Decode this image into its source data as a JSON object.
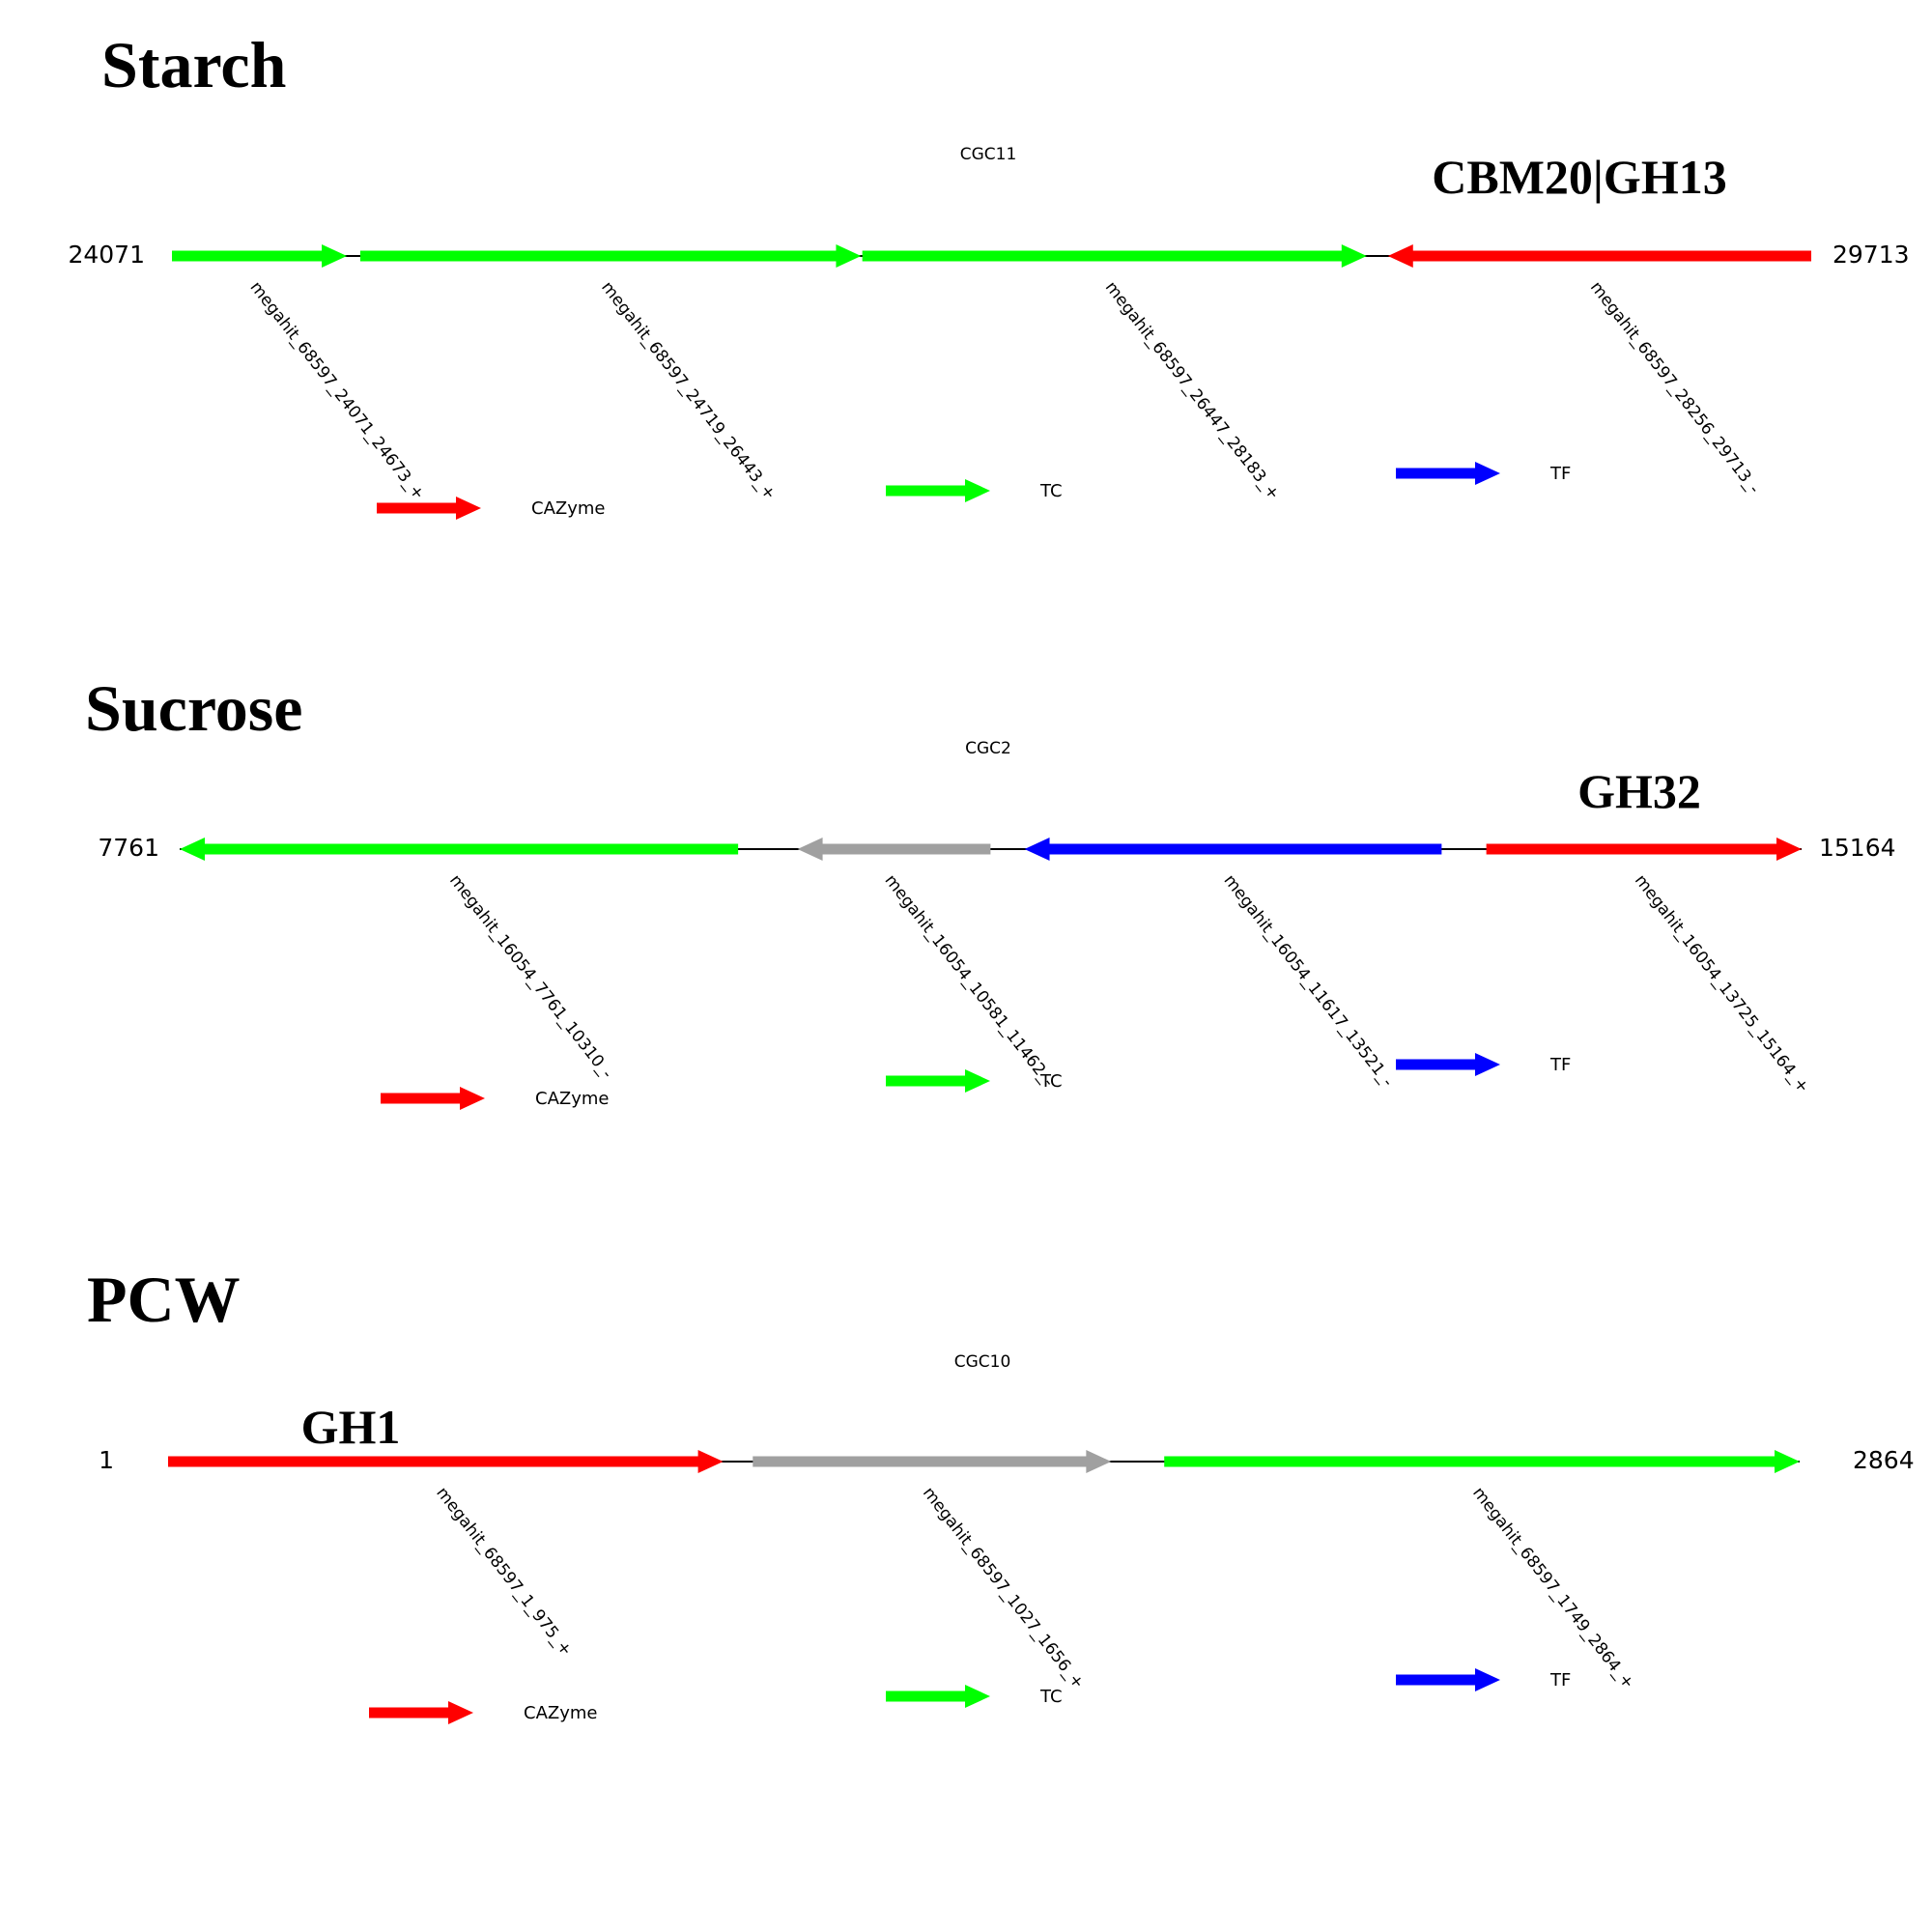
{
  "panels": [
    {
      "title": "Starch",
      "cluster": "CGC11",
      "start": "24071",
      "end": "29713",
      "range": [
        24071,
        29713
      ],
      "annotation": "CBM20|GH13",
      "genes": [
        {
          "label": "megahit_68597_24071_24673_+",
          "start": 24071,
          "end": 24673,
          "strand": "+",
          "type": "TC",
          "color": "#00ff00"
        },
        {
          "label": "megahit_68597_24719_26443_+",
          "start": 24719,
          "end": 26443,
          "strand": "+",
          "type": "TC",
          "color": "#00ff00"
        },
        {
          "label": "megahit_68597_26447_28183_+",
          "start": 26447,
          "end": 28183,
          "strand": "+",
          "type": "TC",
          "color": "#00ff00"
        },
        {
          "label": "megahit_68597_28256_29713_-",
          "start": 28256,
          "end": 29713,
          "strand": "-",
          "type": "CAZyme",
          "color": "#ff0000"
        }
      ]
    },
    {
      "title": "Sucrose",
      "cluster": "CGC2",
      "start": "7761",
      "end": "15164",
      "range": [
        7761,
        15164
      ],
      "annotation": "GH32",
      "genes": [
        {
          "label": "megahit_16054_7761_10310_-",
          "start": 7761,
          "end": 10310,
          "strand": "-",
          "type": "TC",
          "color": "#00ff00"
        },
        {
          "label": "megahit_16054_10581_11462_-",
          "start": 10581,
          "end": 11462,
          "strand": "-",
          "type": "other",
          "color": "#a0a0a0"
        },
        {
          "label": "megahit_16054_11617_13521_-",
          "start": 11617,
          "end": 13521,
          "strand": "-",
          "type": "TF",
          "color": "#0000ff"
        },
        {
          "label": "megahit_16054_13725_15164_+",
          "start": 13725,
          "end": 15164,
          "strand": "+",
          "type": "CAZyme",
          "color": "#ff0000"
        }
      ]
    },
    {
      "title": "PCW",
      "cluster": "CGC10",
      "start": "1",
      "end": "2864",
      "range": [
        1,
        2864
      ],
      "annotation": "GH1",
      "genes": [
        {
          "label": "megahit_68597_1_975_+",
          "start": 1,
          "end": 975,
          "strand": "+",
          "type": "CAZyme",
          "color": "#ff0000"
        },
        {
          "label": "megahit_68597_1027_1656_+",
          "start": 1027,
          "end": 1656,
          "strand": "+",
          "type": "other",
          "color": "#a0a0a0"
        },
        {
          "label": "megahit_68597_1749_2864_+",
          "start": 1749,
          "end": 2864,
          "strand": "+",
          "type": "TC",
          "color": "#00ff00"
        }
      ]
    }
  ],
  "legend": [
    {
      "label": "CAZyme",
      "color": "#ff0000"
    },
    {
      "label": "TC",
      "color": "#00ff00"
    },
    {
      "label": "TF",
      "color": "#0000ff"
    }
  ]
}
